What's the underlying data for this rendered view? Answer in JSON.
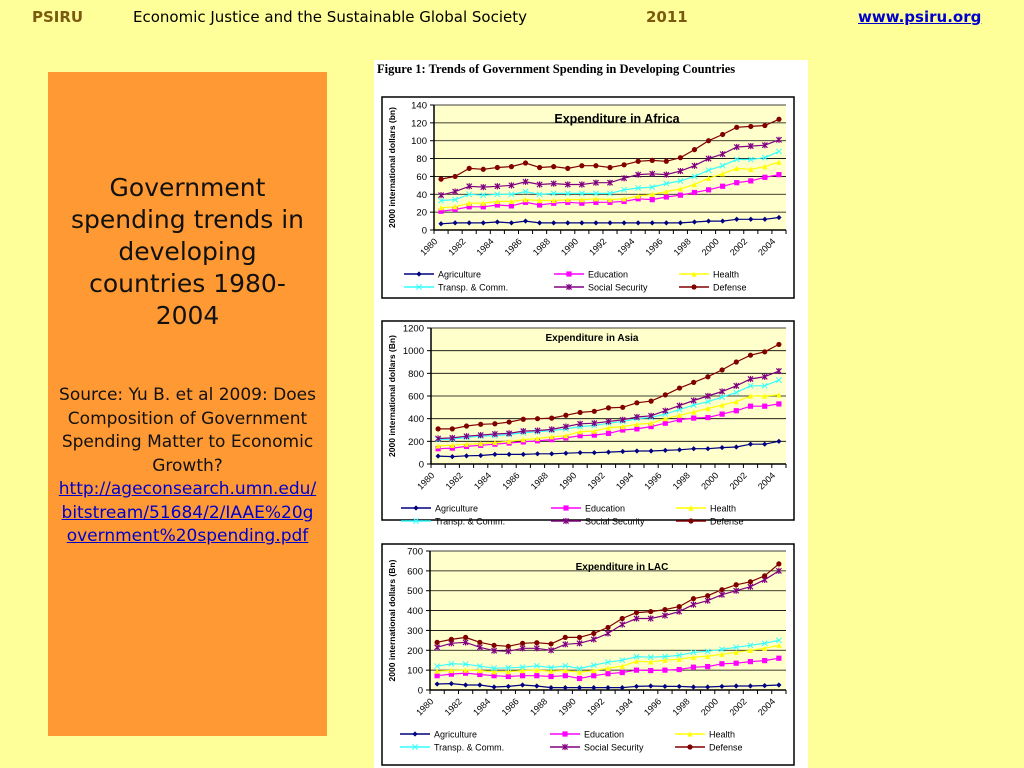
{
  "header": {
    "org": "PSIRU",
    "title": "Economic Justice and the Sustainable Global Society",
    "year": "2011",
    "website": "www.psiru.org"
  },
  "panel": {
    "title": "Government spending trends in developing countries 1980-2004",
    "source": "Source: Yu B. et al 2009: Does Composition of Government Spending Matter to Economic Growth?",
    "link": "http://ageconsearch.umn.edu/bitstream/51684/2/IAAE%20government%20spending.pdf"
  },
  "colors": {
    "background": "#FFFF99",
    "panel": "#FF9933",
    "plot_bg": "#FFFFCC",
    "link": "#0000CC"
  },
  "figure": {
    "caption": "Figure 1: Trends of Government Spending in Developing Countries"
  },
  "chart_data": [
    {
      "type": "line",
      "title": "Expenditure in Africa",
      "ylabel": "2000 international dollars (bn)",
      "ylim": [
        0,
        140
      ],
      "yticks": [
        "0",
        "20",
        "40",
        "60",
        "80",
        "100",
        "120",
        "140"
      ],
      "xtick_labels": [
        "1980",
        "1982",
        "1984",
        "1986",
        "1988",
        "1990",
        "1992",
        "1994",
        "1996",
        "1998",
        "2000",
        "2002",
        "2004"
      ],
      "x": [
        1980,
        1981,
        1982,
        1983,
        1984,
        1985,
        1986,
        1987,
        1988,
        1989,
        1990,
        1991,
        1992,
        1993,
        1994,
        1995,
        1996,
        1997,
        1998,
        1999,
        2000,
        2001,
        2002,
        2003,
        2004
      ],
      "grid": true,
      "legend": "bottom",
      "series": [
        {
          "name": "Agriculture",
          "color": "#000080",
          "marker": "diamond",
          "values": [
            7,
            8,
            8,
            8,
            9,
            8,
            10,
            8,
            8,
            8,
            8,
            8,
            8,
            8,
            8,
            8,
            8,
            8,
            9,
            10,
            10,
            12,
            12,
            12,
            14
          ]
        },
        {
          "name": "Education",
          "color": "#FF00FF",
          "marker": "square",
          "values": [
            21,
            23,
            26,
            26,
            28,
            27,
            31,
            28,
            30,
            31,
            30,
            31,
            31,
            32,
            35,
            34,
            37,
            39,
            42,
            45,
            49,
            53,
            55,
            59,
            62
          ]
        },
        {
          "name": "Health",
          "color": "#FFFF00",
          "marker": "triangle",
          "values": [
            25,
            26,
            30,
            30,
            32,
            32,
            34,
            33,
            33,
            34,
            34,
            35,
            34,
            35,
            38,
            40,
            43,
            46,
            51,
            58,
            63,
            69,
            68,
            71,
            76
          ]
        },
        {
          "name": "Transp. & Comm.",
          "color": "#33FFFF",
          "marker": "cross",
          "values": [
            33,
            34,
            40,
            39,
            40,
            40,
            43,
            40,
            41,
            41,
            41,
            41,
            41,
            45,
            47,
            48,
            52,
            55,
            60,
            67,
            72,
            79,
            79,
            81,
            88
          ]
        },
        {
          "name": "Social Security",
          "color": "#800080",
          "marker": "star",
          "values": [
            39,
            43,
            49,
            48,
            49,
            50,
            54,
            51,
            52,
            51,
            51,
            53,
            53,
            58,
            62,
            63,
            62,
            66,
            72,
            80,
            85,
            93,
            94,
            95,
            101
          ]
        },
        {
          "name": "Defense",
          "color": "#800000",
          "marker": "circle",
          "values": [
            57,
            60,
            69,
            68,
            70,
            71,
            75,
            70,
            71,
            69,
            72,
            72,
            70,
            73,
            77,
            78,
            77,
            81,
            90,
            100,
            107,
            115,
            116,
            117,
            124
          ]
        }
      ]
    },
    {
      "type": "line",
      "title": "Expenditure in Asia",
      "ylabel": "2000 international dollars (Bn)",
      "ylim": [
        0,
        1200
      ],
      "yticks": [
        "0",
        "200",
        "400",
        "600",
        "800",
        "1000",
        "1200"
      ],
      "xtick_labels": [
        "1980",
        "1982",
        "1984",
        "1986",
        "1988",
        "1990",
        "1992",
        "1994",
        "1996",
        "1998",
        "2000",
        "2002",
        "2004"
      ],
      "x": [
        1980,
        1981,
        1982,
        1983,
        1984,
        1985,
        1986,
        1987,
        1988,
        1989,
        1990,
        1991,
        1992,
        1993,
        1994,
        1995,
        1996,
        1997,
        1998,
        1999,
        2000,
        2001,
        2002,
        2003,
        2004
      ],
      "grid": true,
      "legend": "bottom",
      "series": [
        {
          "name": "Agriculture",
          "color": "#000080",
          "marker": "diamond",
          "values": [
            70,
            65,
            72,
            75,
            85,
            85,
            85,
            90,
            90,
            95,
            100,
            100,
            105,
            110,
            115,
            115,
            120,
            125,
            135,
            135,
            145,
            150,
            175,
            175,
            200
          ]
        },
        {
          "name": "Education",
          "color": "#FF00FF",
          "marker": "square",
          "values": [
            135,
            140,
            155,
            165,
            175,
            185,
            195,
            205,
            215,
            230,
            250,
            255,
            270,
            300,
            310,
            330,
            360,
            390,
            405,
            410,
            440,
            470,
            510,
            510,
            530
          ]
        },
        {
          "name": "Health",
          "color": "#FFFF00",
          "marker": "triangle",
          "values": [
            160,
            165,
            175,
            180,
            190,
            200,
            215,
            225,
            240,
            250,
            285,
            290,
            320,
            330,
            350,
            360,
            400,
            430,
            460,
            490,
            520,
            550,
            600,
            600,
            610
          ]
        },
        {
          "name": "Transp. & Comm.",
          "color": "#33FFFF",
          "marker": "cross",
          "values": [
            215,
            220,
            235,
            245,
            250,
            260,
            275,
            285,
            295,
            310,
            330,
            340,
            360,
            375,
            400,
            410,
            440,
            480,
            520,
            550,
            590,
            630,
            690,
            690,
            740
          ]
        },
        {
          "name": "Social Security",
          "color": "#800080",
          "marker": "star",
          "values": [
            225,
            230,
            245,
            255,
            265,
            270,
            290,
            295,
            305,
            330,
            355,
            360,
            375,
            390,
            415,
            425,
            470,
            515,
            560,
            600,
            640,
            690,
            750,
            770,
            820
          ]
        },
        {
          "name": "Defense",
          "color": "#800000",
          "marker": "circle",
          "values": [
            310,
            310,
            335,
            350,
            355,
            370,
            395,
            400,
            405,
            430,
            455,
            465,
            495,
            500,
            540,
            555,
            610,
            670,
            720,
            770,
            830,
            900,
            960,
            990,
            1055
          ]
        }
      ]
    },
    {
      "type": "line",
      "title": "Expenditure in LAC",
      "ylabel": "2000 international dollars (Bn)",
      "ylim": [
        0,
        700
      ],
      "yticks": [
        "0",
        "100",
        "200",
        "300",
        "400",
        "500",
        "600",
        "700"
      ],
      "xtick_labels": [
        "1980",
        "1982",
        "1984",
        "1986",
        "1988",
        "1990",
        "1992",
        "1994",
        "1996",
        "1998",
        "2000",
        "2002",
        "2004"
      ],
      "x": [
        1980,
        1981,
        1982,
        1983,
        1984,
        1985,
        1986,
        1987,
        1988,
        1989,
        1990,
        1991,
        1992,
        1993,
        1994,
        1995,
        1996,
        1997,
        1998,
        1999,
        2000,
        2001,
        2002,
        2003,
        2004
      ],
      "grid": true,
      "legend": "bottom",
      "series": [
        {
          "name": "Agriculture",
          "color": "#000080",
          "marker": "diamond",
          "values": [
            30,
            32,
            25,
            25,
            15,
            18,
            25,
            20,
            12,
            12,
            12,
            12,
            12,
            12,
            18,
            20,
            18,
            18,
            15,
            15,
            18,
            20,
            20,
            22,
            25
          ]
        },
        {
          "name": "Education",
          "color": "#FF00FF",
          "marker": "square",
          "values": [
            72,
            80,
            85,
            78,
            72,
            68,
            72,
            72,
            68,
            72,
            58,
            72,
            82,
            88,
            100,
            98,
            100,
            103,
            115,
            118,
            132,
            135,
            143,
            148,
            160
          ]
        },
        {
          "name": "Health",
          "color": "#FFFF00",
          "marker": "triangle",
          "values": [
            95,
            98,
            100,
            98,
            92,
            92,
            98,
            100,
            95,
            98,
            90,
            98,
            110,
            120,
            145,
            142,
            150,
            155,
            165,
            170,
            180,
            190,
            200,
            210,
            225
          ]
        },
        {
          "name": "Transp. & Comm.",
          "color": "#33FFFF",
          "marker": "cross",
          "values": [
            120,
            132,
            130,
            120,
            110,
            112,
            115,
            122,
            113,
            122,
            108,
            125,
            140,
            150,
            168,
            165,
            168,
            175,
            190,
            195,
            205,
            215,
            225,
            235,
            250
          ]
        },
        {
          "name": "Social Security",
          "color": "#800080",
          "marker": "star",
          "values": [
            215,
            235,
            240,
            215,
            198,
            195,
            210,
            210,
            200,
            230,
            235,
            255,
            285,
            330,
            360,
            360,
            375,
            395,
            430,
            450,
            480,
            500,
            520,
            555,
            600
          ]
        },
        {
          "name": "Defense",
          "color": "#800000",
          "marker": "circle",
          "values": [
            240,
            255,
            265,
            240,
            225,
            220,
            235,
            238,
            232,
            265,
            265,
            285,
            315,
            360,
            390,
            395,
            405,
            420,
            460,
            475,
            505,
            530,
            545,
            575,
            635
          ]
        }
      ]
    }
  ]
}
